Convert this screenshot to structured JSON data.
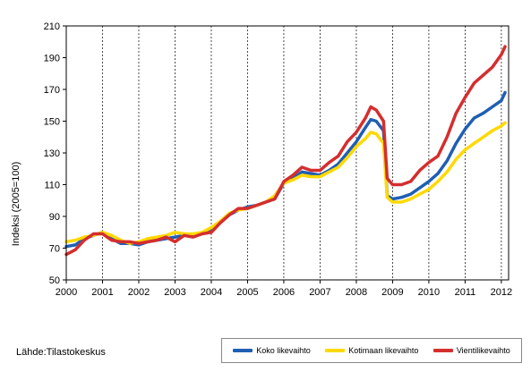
{
  "source": "Lähde:Tilastokeskus",
  "chart_data": {
    "type": "line",
    "title": "",
    "xlabel": "",
    "ylabel": "Indeksi (2005=100)",
    "ylim": [
      50,
      210
    ],
    "yticks": [
      50,
      70,
      90,
      110,
      130,
      150,
      170,
      190,
      210
    ],
    "xlim": [
      2000,
      2012.2
    ],
    "xticks": [
      "2000",
      "2001",
      "2002",
      "2003",
      "2004",
      "2005",
      "2006",
      "2007",
      "2008",
      "2009",
      "2010",
      "2011",
      "2012"
    ],
    "grid": {
      "vertical": "dashed",
      "horizontal": "none"
    },
    "legend_position": "bottom-right",
    "series": [
      {
        "name": "Koko likevaihto",
        "color": "#1f5fb4",
        "x": [
          2000.0,
          2000.25,
          2000.5,
          2000.75,
          2001.0,
          2001.25,
          2001.5,
          2001.75,
          2002.0,
          2002.25,
          2002.5,
          2002.75,
          2003.0,
          2003.25,
          2003.5,
          2003.75,
          2004.0,
          2004.25,
          2004.5,
          2004.75,
          2005.0,
          2005.25,
          2005.5,
          2005.75,
          2006.0,
          2006.25,
          2006.5,
          2006.75,
          2007.0,
          2007.25,
          2007.5,
          2007.75,
          2008.0,
          2008.25,
          2008.4,
          2008.55,
          2008.75,
          2008.85,
          2009.0,
          2009.25,
          2009.5,
          2009.75,
          2010.0,
          2010.25,
          2010.5,
          2010.75,
          2011.0,
          2011.25,
          2011.5,
          2011.75,
          2012.0,
          2012.1
        ],
        "values": [
          71,
          72,
          76,
          78,
          80,
          76,
          73,
          73,
          72,
          74,
          75,
          76,
          77,
          78,
          78,
          79,
          81,
          86,
          91,
          94,
          96,
          97,
          99,
          101,
          111,
          114,
          118,
          117,
          116,
          119,
          123,
          130,
          137,
          146,
          151,
          150,
          144,
          103,
          101,
          102,
          104,
          108,
          112,
          117,
          125,
          136,
          145,
          152,
          155,
          159,
          163,
          168
        ]
      },
      {
        "name": "Kotimaan likevaihto",
        "color": "#ffd900",
        "x": [
          2000.0,
          2000.25,
          2000.5,
          2000.75,
          2001.0,
          2001.25,
          2001.5,
          2001.75,
          2002.0,
          2002.25,
          2002.5,
          2002.75,
          2003.0,
          2003.25,
          2003.5,
          2003.75,
          2004.0,
          2004.25,
          2004.5,
          2004.75,
          2005.0,
          2005.25,
          2005.5,
          2005.75,
          2006.0,
          2006.25,
          2006.5,
          2006.75,
          2007.0,
          2007.25,
          2007.5,
          2007.75,
          2008.0,
          2008.25,
          2008.4,
          2008.55,
          2008.75,
          2008.85,
          2009.0,
          2009.25,
          2009.5,
          2009.75,
          2010.0,
          2010.25,
          2010.5,
          2010.75,
          2011.0,
          2011.25,
          2011.5,
          2011.75,
          2012.0,
          2012.1
        ],
        "values": [
          74,
          75,
          77,
          78,
          80,
          78,
          75,
          73,
          74,
          76,
          77,
          78,
          80,
          79,
          79,
          80,
          83,
          87,
          92,
          94,
          95,
          97,
          99,
          103,
          111,
          113,
          116,
          115,
          115,
          118,
          121,
          127,
          134,
          139,
          143,
          142,
          136,
          102,
          99,
          99,
          101,
          104,
          107,
          112,
          118,
          126,
          132,
          136,
          140,
          144,
          147,
          149
        ]
      },
      {
        "name": "Vientilikevaihto",
        "color": "#d42e2e",
        "x": [
          2000.0,
          2000.25,
          2000.5,
          2000.75,
          2001.0,
          2001.25,
          2001.5,
          2001.75,
          2002.0,
          2002.25,
          2002.5,
          2002.75,
          2003.0,
          2003.25,
          2003.5,
          2003.75,
          2004.0,
          2004.25,
          2004.5,
          2004.75,
          2005.0,
          2005.25,
          2005.5,
          2005.75,
          2006.0,
          2006.25,
          2006.5,
          2006.75,
          2007.0,
          2007.25,
          2007.5,
          2007.75,
          2008.0,
          2008.25,
          2008.4,
          2008.55,
          2008.75,
          2008.85,
          2009.0,
          2009.25,
          2009.5,
          2009.75,
          2010.0,
          2010.25,
          2010.5,
          2010.75,
          2011.0,
          2011.25,
          2011.5,
          2011.75,
          2012.0,
          2012.1
        ],
        "values": [
          66,
          69,
          75,
          79,
          79,
          75,
          74,
          74,
          73,
          74,
          75,
          77,
          74,
          78,
          77,
          79,
          80,
          86,
          91,
          95,
          95,
          97,
          99,
          101,
          112,
          116,
          121,
          119,
          119,
          124,
          128,
          137,
          143,
          152,
          159,
          157,
          150,
          114,
          110,
          110,
          112,
          119,
          124,
          128,
          140,
          155,
          165,
          174,
          179,
          184,
          192,
          197
        ]
      }
    ]
  }
}
